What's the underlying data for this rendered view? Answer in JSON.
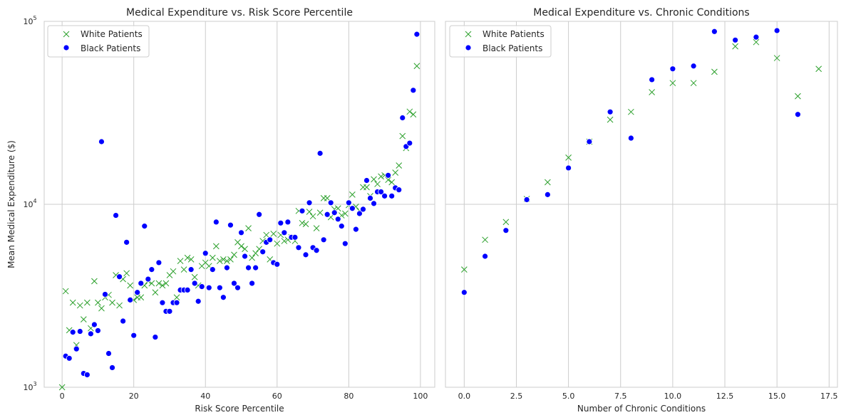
{
  "chart_data": [
    {
      "type": "scatter",
      "title": "Medical Expenditure vs. Risk Score Percentile",
      "xlabel": "Risk Score Percentile",
      "ylabel": "Mean Medical Expenditure ($)",
      "xlim": [
        -5,
        104
      ],
      "ylim": [
        1000,
        100000
      ],
      "y_scale": "log",
      "x_ticks": [
        0,
        20,
        40,
        60,
        80,
        100
      ],
      "x_tick_labels": [
        "0",
        "20",
        "40",
        "60",
        "80",
        "100"
      ],
      "y_ticks": [
        1000,
        10000,
        100000
      ],
      "y_tick_labels": [
        {
          "base": "10",
          "exp": "3"
        },
        {
          "base": "10",
          "exp": "4"
        },
        {
          "base": "10",
          "exp": "5"
        }
      ],
      "grid": true,
      "legend_position": "top-left",
      "series": [
        {
          "name": "White Patients",
          "marker": "x",
          "color": "#2ca02c",
          "x": [
            0,
            1,
            2,
            3,
            4,
            5,
            6,
            7,
            8,
            9,
            10,
            11,
            12,
            13,
            14,
            15,
            16,
            17,
            18,
            19,
            20,
            21,
            22,
            23,
            24,
            25,
            26,
            27,
            28,
            29,
            30,
            31,
            32,
            33,
            34,
            35,
            36,
            37,
            38,
            39,
            40,
            41,
            42,
            43,
            44,
            45,
            46,
            47,
            48,
            49,
            50,
            51,
            52,
            53,
            54,
            55,
            56,
            57,
            58,
            59,
            60,
            61,
            62,
            63,
            64,
            65,
            66,
            67,
            68,
            69,
            70,
            71,
            72,
            73,
            74,
            75,
            76,
            77,
            78,
            79,
            80,
            81,
            82,
            83,
            84,
            85,
            86,
            87,
            88,
            89,
            90,
            91,
            92,
            93,
            94,
            95,
            96,
            97,
            98,
            99
          ],
          "y": [
            1000,
            3350,
            2050,
            2900,
            1700,
            2800,
            2350,
            2900,
            2100,
            3800,
            2900,
            2700,
            3100,
            3200,
            2900,
            4100,
            2800,
            3900,
            4200,
            3600,
            3000,
            3100,
            3100,
            3600,
            3800,
            3700,
            3300,
            3700,
            3600,
            3700,
            4100,
            4300,
            3100,
            4900,
            4400,
            5100,
            5000,
            4000,
            3600,
            4600,
            4800,
            4600,
            5100,
            5900,
            4900,
            5000,
            4900,
            5000,
            5300,
            6200,
            5900,
            5700,
            7400,
            5100,
            5400,
            5700,
            6300,
            6800,
            5000,
            6900,
            6100,
            6800,
            6300,
            6400,
            6600,
            6300,
            9200,
            7900,
            7800,
            9100,
            8600,
            7400,
            9000,
            10800,
            10800,
            8500,
            9400,
            9500,
            8700,
            8900,
            9900,
            11300,
            9700,
            9200,
            12400,
            12400,
            11100,
            13700,
            12900,
            14200,
            14400,
            13600,
            13200,
            14900,
            16300,
            23600,
            20300,
            32100,
            31000,
            57000
          ]
        },
        {
          "name": "Black Patients",
          "marker": "circle",
          "color": "#0000ff",
          "x": [
            1,
            2,
            3,
            4,
            5,
            6,
            7,
            8,
            9,
            10,
            11,
            12,
            13,
            14,
            15,
            16,
            17,
            18,
            19,
            20,
            21,
            22,
            23,
            24,
            25,
            26,
            27,
            28,
            29,
            30,
            31,
            32,
            33,
            34,
            35,
            36,
            37,
            38,
            39,
            40,
            41,
            42,
            43,
            44,
            45,
            46,
            47,
            48,
            49,
            50,
            51,
            52,
            53,
            54,
            55,
            56,
            57,
            58,
            59,
            60,
            61,
            62,
            63,
            64,
            65,
            66,
            67,
            68,
            69,
            70,
            71,
            72,
            73,
            74,
            75,
            76,
            77,
            78,
            79,
            80,
            81,
            82,
            83,
            84,
            85,
            86,
            87,
            88,
            89,
            90,
            91,
            92,
            93,
            94,
            95,
            96,
            97,
            98,
            99
          ],
          "y": [
            1480,
            1440,
            2000,
            1620,
            2020,
            1190,
            1170,
            1960,
            2200,
            2040,
            22000,
            3220,
            1530,
            1280,
            8700,
            4020,
            2300,
            6200,
            3000,
            1920,
            3300,
            3700,
            7600,
            3900,
            4400,
            1880,
            4800,
            2900,
            2600,
            2600,
            2900,
            2900,
            3400,
            3400,
            3400,
            4400,
            3700,
            2950,
            3550,
            5400,
            3500,
            4400,
            8000,
            3500,
            3100,
            4500,
            7700,
            3700,
            3500,
            7000,
            5200,
            4500,
            3700,
            4500,
            8800,
            5500,
            6200,
            6400,
            4800,
            4700,
            7900,
            7000,
            8000,
            6600,
            6600,
            5800,
            9200,
            5300,
            10200,
            5800,
            5600,
            19000,
            6400,
            8800,
            10200,
            9000,
            8300,
            7600,
            6100,
            10200,
            9500,
            7300,
            8900,
            9400,
            13500,
            10800,
            10100,
            11700,
            11700,
            11100,
            14400,
            11100,
            12300,
            12000,
            29700,
            20700,
            21600,
            42000,
            85000
          ]
        }
      ]
    },
    {
      "type": "scatter",
      "title": "Medical Expenditure vs. Chronic Conditions",
      "xlabel": "Number of Chronic Conditions",
      "ylabel": "",
      "xlim": [
        -0.9,
        17.9
      ],
      "ylim": [
        1000,
        100000
      ],
      "y_scale": "log",
      "x_ticks": [
        0,
        2.5,
        5,
        7.5,
        10,
        12.5,
        15,
        17.5
      ],
      "x_tick_labels": [
        "0.0",
        "2.5",
        "5.0",
        "7.5",
        "10.0",
        "12.5",
        "15.0",
        "17.5"
      ],
      "grid": true,
      "legend_position": "top-left",
      "series": [
        {
          "name": "White Patients",
          "marker": "x",
          "color": "#2ca02c",
          "x": [
            0,
            1,
            2,
            3,
            4,
            5,
            6,
            7,
            8,
            9,
            10,
            11,
            12,
            13,
            14,
            15,
            16,
            17
          ],
          "y": [
            4400,
            6400,
            8000,
            10700,
            13200,
            18000,
            22000,
            29000,
            32000,
            41000,
            46000,
            46000,
            53000,
            73000,
            77000,
            63000,
            39000,
            55000
          ]
        },
        {
          "name": "Black Patients",
          "marker": "circle",
          "color": "#0000ff",
          "x": [
            0,
            1,
            2,
            3,
            4,
            5,
            6,
            7,
            8,
            9,
            10,
            11,
            12,
            13,
            14,
            15,
            16
          ],
          "y": [
            3300,
            5200,
            7200,
            10600,
            11300,
            15800,
            22000,
            32000,
            23000,
            48000,
            55000,
            57000,
            88000,
            79000,
            82000,
            89000,
            31000
          ]
        }
      ]
    }
  ]
}
